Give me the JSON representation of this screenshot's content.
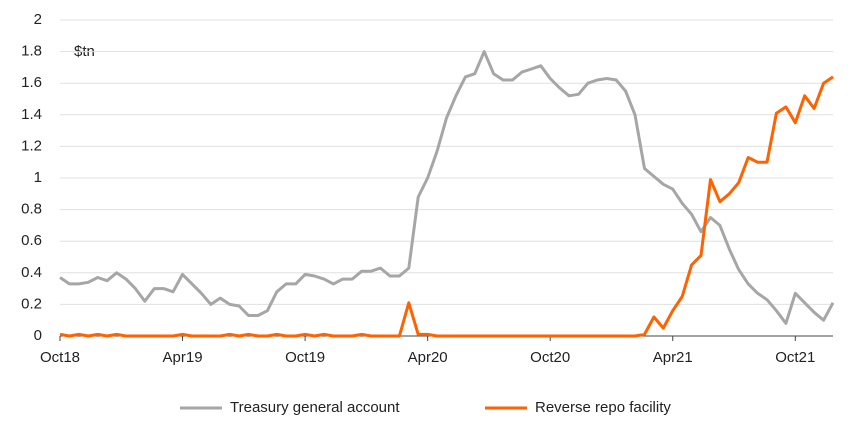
{
  "chart_data": {
    "type": "line",
    "unit_label": "$tn",
    "categories": [
      "Oct18",
      null,
      null,
      null,
      null,
      null,
      null,
      null,
      null,
      null,
      null,
      null,
      null,
      "Apr19",
      null,
      null,
      null,
      null,
      null,
      null,
      null,
      null,
      null,
      null,
      null,
      null,
      "Oct19",
      null,
      null,
      null,
      null,
      null,
      null,
      null,
      null,
      null,
      null,
      null,
      null,
      "Apr20",
      null,
      null,
      null,
      null,
      null,
      null,
      null,
      null,
      null,
      null,
      null,
      null,
      "Oct20",
      null,
      null,
      null,
      null,
      null,
      null,
      null,
      null,
      null,
      null,
      null,
      null,
      "Apr21",
      null,
      null,
      null,
      null,
      null,
      null,
      null,
      null,
      null,
      null,
      null,
      null,
      "Oct21",
      null,
      null,
      null,
      null
    ],
    "series": [
      {
        "name": "Treasury general account",
        "color": "#a6a6a6",
        "values": [
          0.37,
          0.33,
          0.33,
          0.34,
          0.37,
          0.35,
          0.4,
          0.36,
          0.3,
          0.22,
          0.3,
          0.3,
          0.28,
          0.39,
          0.33,
          0.27,
          0.2,
          0.24,
          0.2,
          0.19,
          0.13,
          0.13,
          0.16,
          0.28,
          0.33,
          0.33,
          0.39,
          0.38,
          0.36,
          0.33,
          0.36,
          0.36,
          0.41,
          0.41,
          0.43,
          0.38,
          0.38,
          0.43,
          0.88,
          1.0,
          1.17,
          1.38,
          1.52,
          1.64,
          1.66,
          1.8,
          1.66,
          1.62,
          1.62,
          1.67,
          1.69,
          1.71,
          1.63,
          1.57,
          1.52,
          1.53,
          1.6,
          1.62,
          1.63,
          1.62,
          1.55,
          1.4,
          1.06,
          1.01,
          0.96,
          0.93,
          0.84,
          0.77,
          0.66,
          0.75,
          0.7,
          0.55,
          0.42,
          0.33,
          0.27,
          0.23,
          0.16,
          0.08,
          0.27,
          0.21,
          0.15,
          0.1,
          0.21
        ]
      },
      {
        "name": "Reverse repo facility",
        "color": "#ff6200",
        "values": [
          0.01,
          0,
          0.01,
          0,
          0.01,
          0,
          0.01,
          0,
          0,
          0,
          0,
          0,
          0,
          0.01,
          0,
          0,
          0,
          0,
          0.01,
          0,
          0.01,
          0,
          0,
          0.01,
          0,
          0,
          0.01,
          0,
          0.01,
          0,
          0,
          0,
          0.01,
          0,
          0,
          0,
          0,
          0.21,
          0.01,
          0.01,
          0,
          0,
          0,
          0,
          0,
          0,
          0,
          0,
          0,
          0,
          0,
          0,
          0,
          0,
          0,
          0,
          0,
          0,
          0,
          0,
          0,
          0,
          0.01,
          0.12,
          0.05,
          0.16,
          0.25,
          0.45,
          0.51,
          0.99,
          0.85,
          0.9,
          0.97,
          1.13,
          1.1,
          1.1,
          1.41,
          1.45,
          1.35,
          1.52,
          1.44,
          1.6,
          1.64
        ]
      }
    ],
    "ylim": [
      0,
      2
    ],
    "yticks": [
      0,
      0.2,
      0.4,
      0.6,
      0.8,
      1,
      1.2,
      1.4,
      1.6,
      1.8,
      2
    ],
    "grid": true
  }
}
